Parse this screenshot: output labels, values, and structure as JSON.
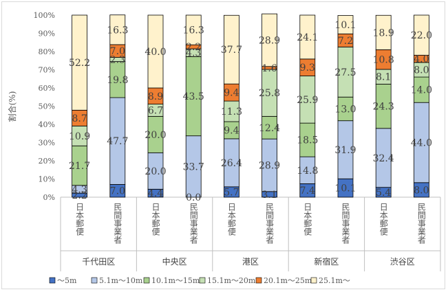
{
  "chart_data": {
    "type": "bar",
    "stacked": true,
    "ylabel": "割合(%)",
    "ylim": [
      0,
      100
    ],
    "yticks": [
      "0%",
      "10%",
      "20%",
      "30%",
      "40%",
      "50%",
      "60%",
      "70%",
      "80%",
      "90%",
      "100%"
    ],
    "grid": false,
    "legend_position": "bottom",
    "groups": [
      "千代田区",
      "中央区",
      "港区",
      "新宿区",
      "渋谷区"
    ],
    "categories": [
      "日本郵便",
      "民間事業者",
      "日本郵便",
      "民間事業者",
      "日本郵便",
      "民間事業者",
      "日本郵便",
      "民間事業者",
      "日本郵便",
      "民間事業者"
    ],
    "series": [
      {
        "name": "〜5m",
        "color": "#4472c4",
        "values": [
          2.2,
          7.0,
          4.4,
          0.0,
          5.7,
          3.1,
          7.4,
          10.1,
          5.4,
          8.0
        ]
      },
      {
        "name": "5.1m〜10m",
        "color": "#b4c7e7",
        "values": [
          4.3,
          47.7,
          20.0,
          33.7,
          26.4,
          28.9,
          14.8,
          31.9,
          32.4,
          44.0
        ]
      },
      {
        "name": "10.1m〜15m",
        "color": "#a9d18e",
        "values": [
          21.7,
          19.8,
          20.0,
          43.5,
          9.4,
          12.4,
          18.5,
          13.0,
          24.3,
          14.0
        ]
      },
      {
        "name": "15.1m〜20m",
        "color": "#c5e0b4",
        "values": [
          10.9,
          2.3,
          6.7,
          4.3,
          11.3,
          25.8,
          25.9,
          27.5,
          8.1,
          8.0
        ]
      },
      {
        "name": "20.1m〜25m",
        "color": "#ed7d31",
        "values": [
          8.7,
          7.0,
          8.9,
          2.2,
          9.4,
          1.6,
          9.3,
          7.2,
          10.8,
          4.0
        ]
      },
      {
        "name": "25.1m〜",
        "color": "#fff2cc",
        "values": [
          52.2,
          16.3,
          40.0,
          16.3,
          37.7,
          28.9,
          24.1,
          10.1,
          18.9,
          22.0
        ]
      }
    ]
  }
}
